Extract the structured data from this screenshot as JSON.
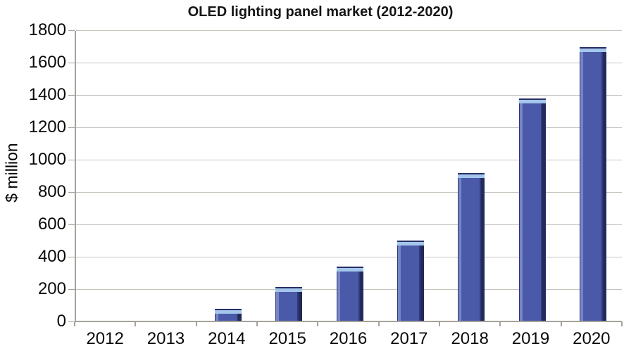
{
  "chart_data": {
    "type": "bar",
    "title": "OLED lighting panel market (2012-2020)",
    "xlabel": "",
    "ylabel": "$ million",
    "categories": [
      "2012",
      "2013",
      "2014",
      "2015",
      "2016",
      "2017",
      "2018",
      "2019",
      "2020"
    ],
    "values": [
      0,
      0,
      75,
      210,
      335,
      495,
      915,
      1375,
      1690
    ],
    "ylim": [
      0,
      1800
    ],
    "y_ticks": [
      0,
      200,
      400,
      600,
      800,
      1000,
      1200,
      1400,
      1600,
      1800
    ],
    "grid": true,
    "legend_position": "none",
    "bar_fill_color": "#4a5aa8",
    "bar_edge_light_color": "#7585c6",
    "bar_edge_dark_color": "#232a5e",
    "bar_top_highlight_color": "#a5c6ec",
    "gridline_color": "#c6c3bd",
    "axis_line_color": "#a6a29b",
    "title_color": "#151515",
    "tick_label_color": "#0a0a0a"
  }
}
